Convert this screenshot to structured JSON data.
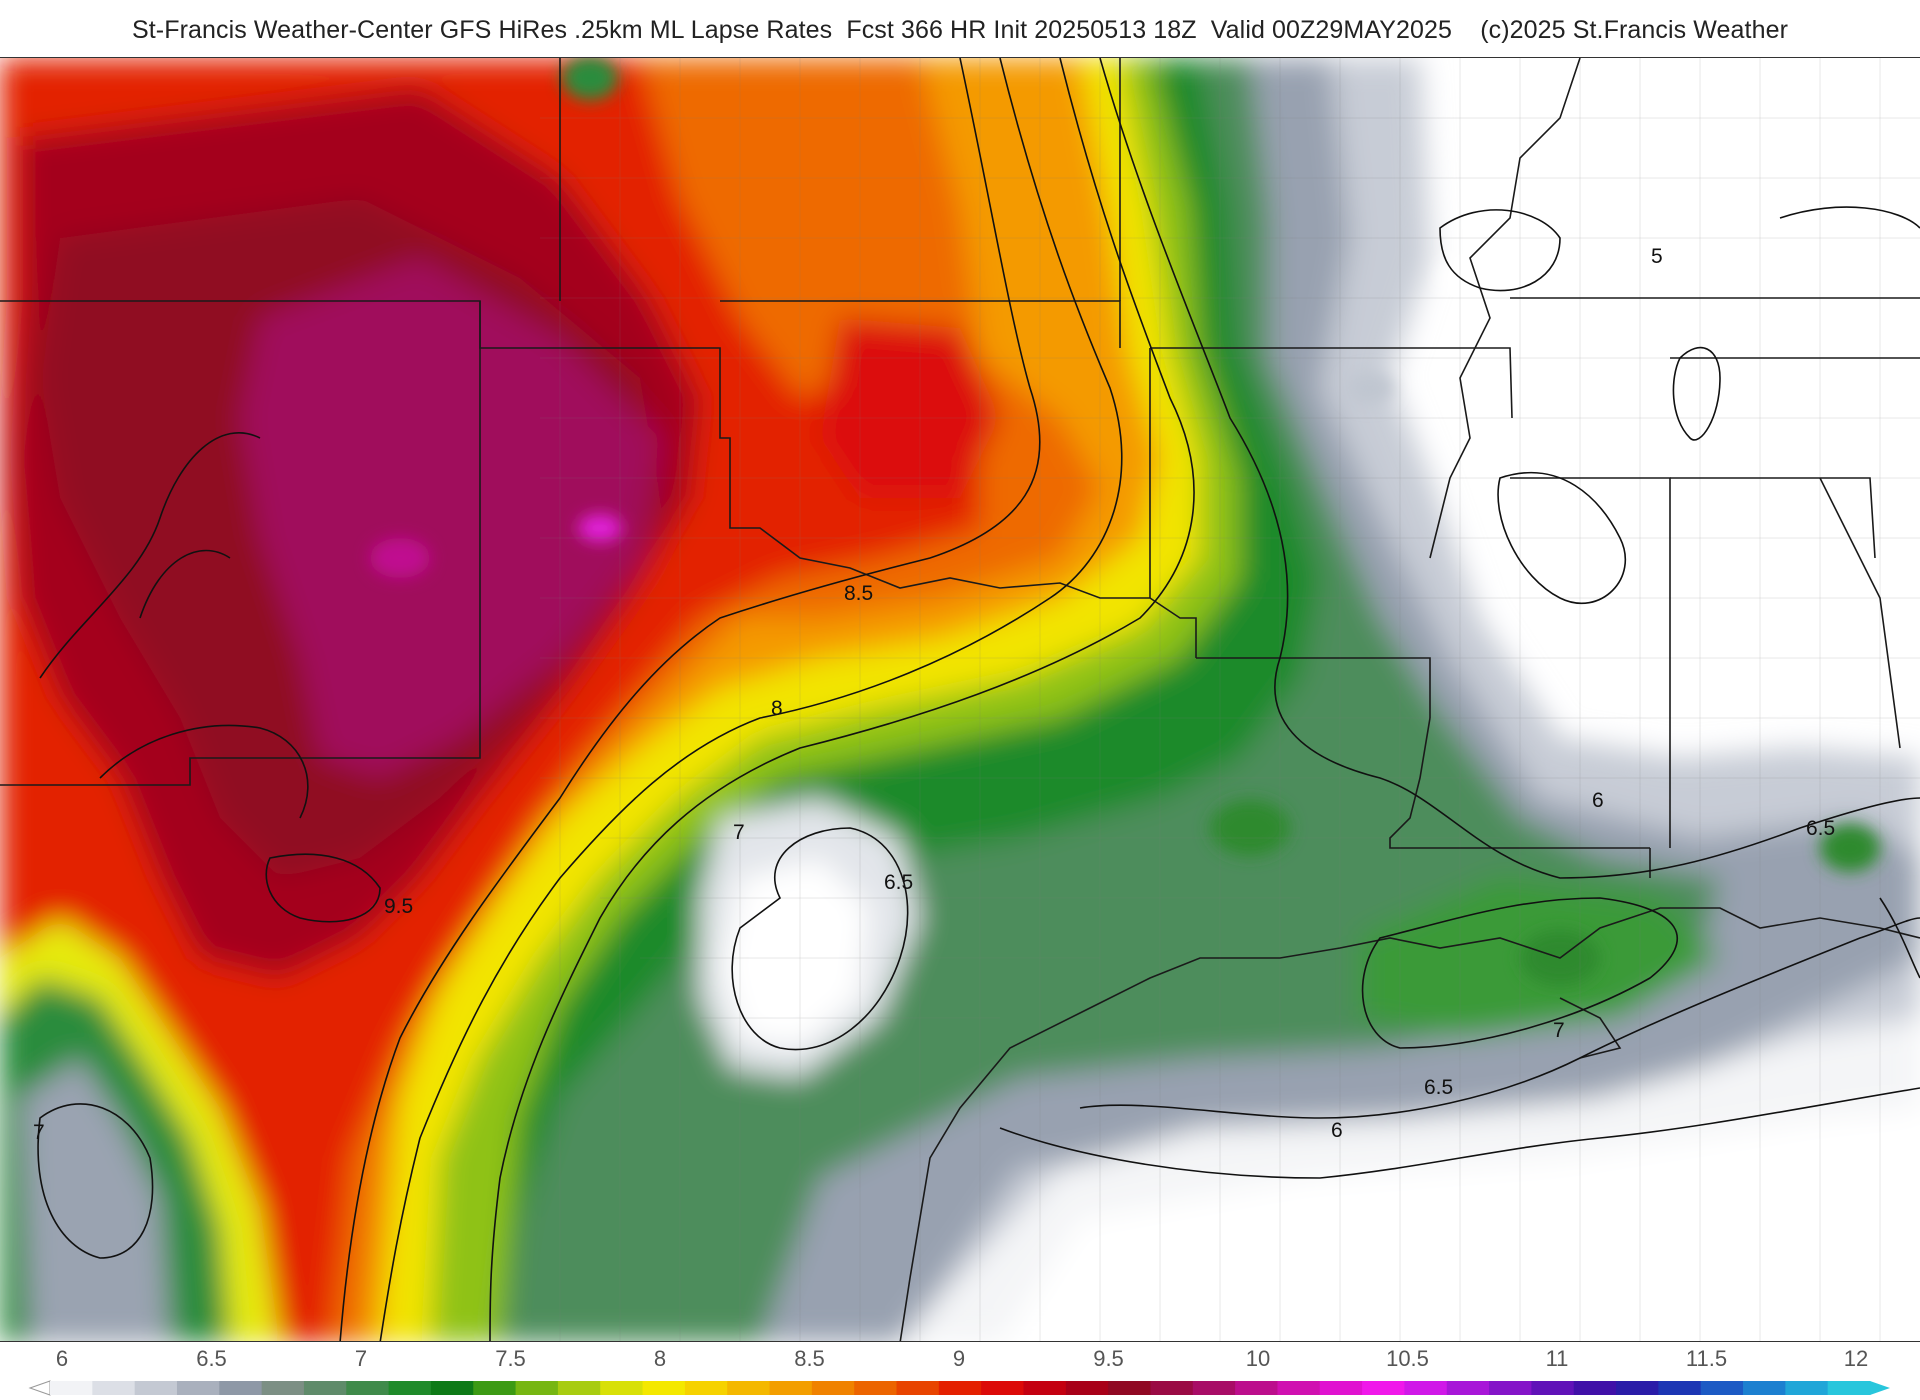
{
  "title": "St-Francis Weather-Center GFS HiRes .25km ML Lapse Rates  Fcst 366 HR Init 20250513 18Z  Valid 00Z29MAY2025    (c)2025 St.Francis Weather",
  "field": {
    "name": "ML Lapse Rates",
    "model": "GFS HiRes .25km",
    "forecast_hour": "366",
    "init": "20250513 18Z",
    "valid": "00Z29MAY2025",
    "copyright": "(c)2025 St.Francis Weather"
  },
  "contour_labels": [
    {
      "id": "c5",
      "text": "5"
    },
    {
      "id": "c6-east",
      "text": "6"
    },
    {
      "id": "c6-gulf",
      "text": "6"
    },
    {
      "id": "c65-east",
      "text": "6.5"
    },
    {
      "id": "c65-gulf",
      "text": "6.5"
    },
    {
      "id": "c65-tx",
      "text": "6.5"
    },
    {
      "id": "c7-tx",
      "text": "7"
    },
    {
      "id": "c7-la",
      "text": "7"
    },
    {
      "id": "c7-west",
      "text": "7"
    },
    {
      "id": "c8",
      "text": "8"
    },
    {
      "id": "c85",
      "text": "8.5"
    },
    {
      "id": "c95",
      "text": "9.5"
    }
  ],
  "scale": {
    "ticks": [
      "6",
      "6.5",
      "7",
      "7.5",
      "8",
      "8.5",
      "9",
      "9.5",
      "10",
      "10.5",
      "11",
      "11.5",
      "12"
    ],
    "colors": [
      "#f2f3f6",
      "#dcdfe6",
      "#c4c9d3",
      "#a9b0bd",
      "#8e98a6",
      "#7c8f84",
      "#5f8b6a",
      "#3f8a4a",
      "#1f8a2a",
      "#0e7a17",
      "#3c9a14",
      "#76b612",
      "#a8cc10",
      "#d8e008",
      "#f4e800",
      "#f6d200",
      "#f4b800",
      "#f39e00",
      "#f08200",
      "#ec6400",
      "#e84400",
      "#e42000",
      "#dc0a08",
      "#c40010",
      "#a80018",
      "#900822",
      "#9a0a44",
      "#a80c66",
      "#bc0e8c",
      "#d010b0",
      "#e012d0",
      "#f018ea",
      "#d018e8",
      "#a816d8",
      "#8414c8",
      "#6012b8",
      "#4010a8",
      "#2a1ca8",
      "#1c36b4",
      "#1c5ac4",
      "#1c80d0",
      "#20a6d8",
      "#28c6dc"
    ]
  }
}
